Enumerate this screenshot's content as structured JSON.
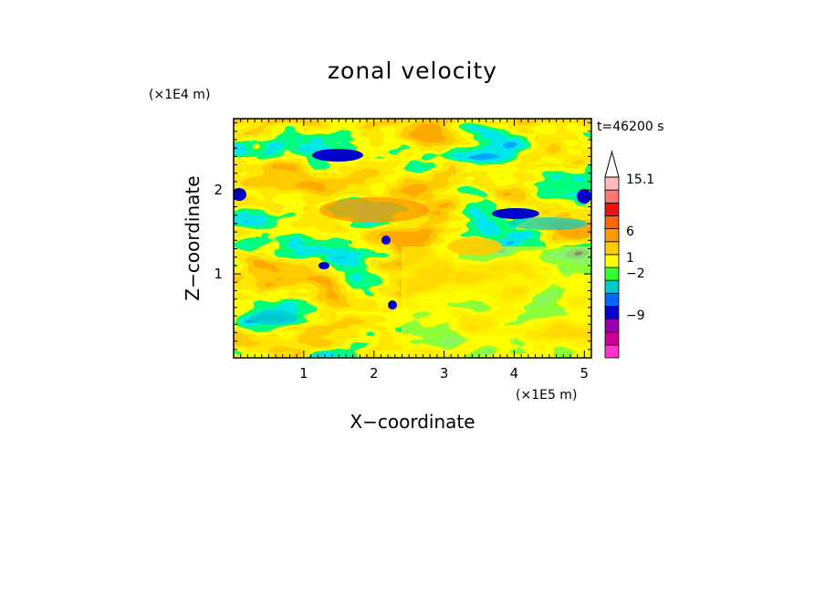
{
  "chart_data": {
    "type": "heatmap",
    "title": "zonal velocity",
    "time_label": "t=46200 s",
    "xlabel": "X−coordinate",
    "ylabel": "Z−coordinate",
    "x_scale_label": "(×1E5 m)",
    "y_scale_label": "(×1E4 m)",
    "xlim": [
      0,
      5.1
    ],
    "ylim": [
      0,
      2.85
    ],
    "x_ticks": [
      "1",
      "2",
      "3",
      "4",
      "5"
    ],
    "y_ticks": [
      "1",
      "2"
    ],
    "colorbar": {
      "labels": [
        "15.1",
        "6",
        "1",
        "−2",
        "−9"
      ],
      "levels": [
        {
          "color": "#ff33cc"
        },
        {
          "color": "#cc0099"
        },
        {
          "color": "#9900aa"
        },
        {
          "color": "#0000cc"
        },
        {
          "color": "#0066ff"
        },
        {
          "color": "#00cccc"
        },
        {
          "color": "#33ff33"
        },
        {
          "color": "#ffff00"
        },
        {
          "color": "#ffcc00"
        },
        {
          "color": "#ff9900"
        },
        {
          "color": "#ff6600"
        },
        {
          "color": "#ee1111"
        },
        {
          "color": "#ff7777"
        },
        {
          "color": "#ffbbbb"
        }
      ]
    }
  }
}
